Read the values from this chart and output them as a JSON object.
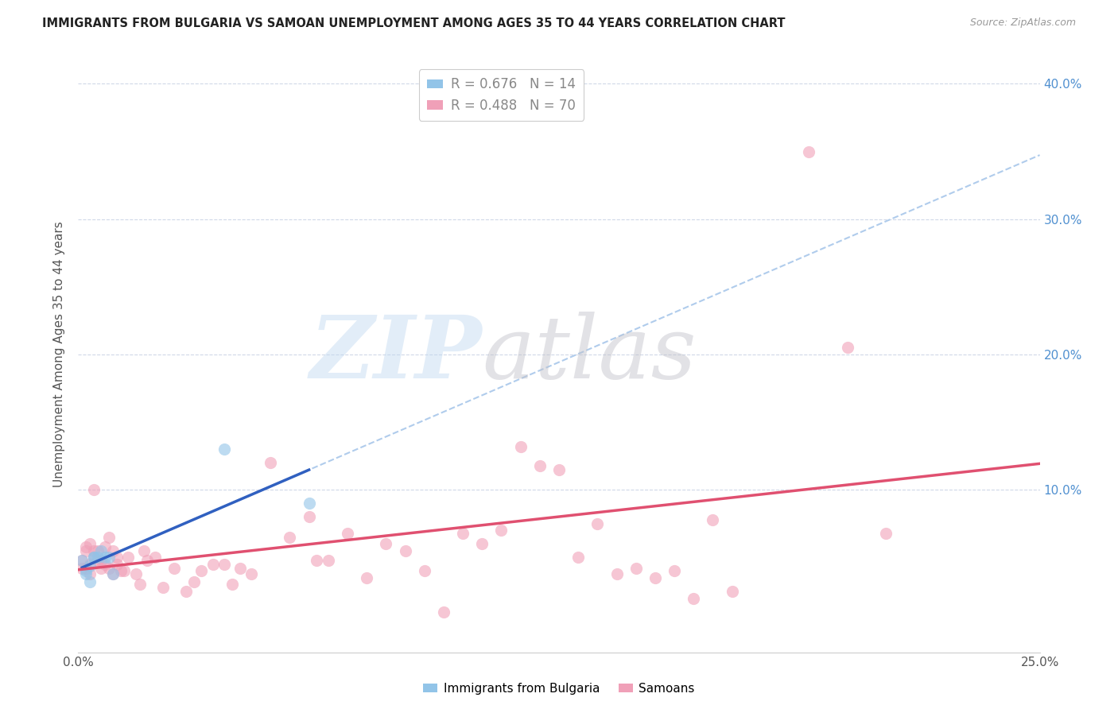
{
  "title": "IMMIGRANTS FROM BULGARIA VS SAMOAN UNEMPLOYMENT AMONG AGES 35 TO 44 YEARS CORRELATION CHART",
  "source": "Source: ZipAtlas.com",
  "ylabel": "Unemployment Among Ages 35 to 44 years",
  "xlim": [
    0.0,
    0.25
  ],
  "ylim": [
    -0.02,
    0.42
  ],
  "y_ticks": [
    0.0,
    0.1,
    0.2,
    0.3,
    0.4
  ],
  "right_y_tick_labels": [
    "",
    "10.0%",
    "20.0%",
    "30.0%",
    "40.0%"
  ],
  "x_tick_left_label": "0.0%",
  "x_tick_right_label": "25.0%",
  "bulgaria_color": "#92c4e8",
  "samoan_color": "#f0a0b8",
  "bulgaria_line_color": "#3060c0",
  "samoan_line_color": "#e05070",
  "bulgaria_dash_color": "#b0ccec",
  "grid_color": "#d0d8e8",
  "legend_entries": [
    {
      "label": "R = 0.676   N = 14",
      "color": "#92c4e8"
    },
    {
      "label": "R = 0.488   N = 70",
      "color": "#f0a0b8"
    }
  ],
  "bottom_legend": [
    {
      "label": "Immigrants from Bulgaria",
      "color": "#92c4e8"
    },
    {
      "label": "Samoans",
      "color": "#f0a0b8"
    }
  ],
  "bulgaria_points_x": [
    0.001,
    0.002,
    0.002,
    0.003,
    0.003,
    0.004,
    0.004,
    0.005,
    0.006,
    0.007,
    0.008,
    0.009,
    0.038,
    0.06
  ],
  "bulgaria_points_y": [
    0.048,
    0.04,
    0.038,
    0.044,
    0.032,
    0.05,
    0.05,
    0.05,
    0.055,
    0.05,
    0.05,
    0.038,
    0.13,
    0.09
  ],
  "samoan_points_x": [
    0.001,
    0.001,
    0.002,
    0.002,
    0.002,
    0.003,
    0.003,
    0.003,
    0.004,
    0.004,
    0.004,
    0.005,
    0.005,
    0.006,
    0.006,
    0.007,
    0.007,
    0.008,
    0.008,
    0.009,
    0.009,
    0.01,
    0.01,
    0.011,
    0.012,
    0.013,
    0.015,
    0.016,
    0.017,
    0.018,
    0.02,
    0.022,
    0.025,
    0.028,
    0.03,
    0.032,
    0.035,
    0.038,
    0.04,
    0.042,
    0.045,
    0.05,
    0.055,
    0.06,
    0.062,
    0.065,
    0.07,
    0.075,
    0.08,
    0.085,
    0.09,
    0.095,
    0.1,
    0.105,
    0.11,
    0.115,
    0.12,
    0.125,
    0.13,
    0.135,
    0.14,
    0.145,
    0.15,
    0.155,
    0.16,
    0.165,
    0.17,
    0.19,
    0.2,
    0.21
  ],
  "samoan_points_y": [
    0.048,
    0.042,
    0.055,
    0.058,
    0.042,
    0.06,
    0.045,
    0.038,
    0.055,
    0.1,
    0.05,
    0.055,
    0.048,
    0.042,
    0.048,
    0.045,
    0.058,
    0.042,
    0.065,
    0.038,
    0.055,
    0.05,
    0.045,
    0.04,
    0.04,
    0.05,
    0.038,
    0.03,
    0.055,
    0.048,
    0.05,
    0.028,
    0.042,
    0.025,
    0.032,
    0.04,
    0.045,
    0.045,
    0.03,
    0.042,
    0.038,
    0.12,
    0.065,
    0.08,
    0.048,
    0.048,
    0.068,
    0.035,
    0.06,
    0.055,
    0.04,
    0.01,
    0.068,
    0.06,
    0.07,
    0.132,
    0.118,
    0.115,
    0.05,
    0.075,
    0.038,
    0.042,
    0.035,
    0.04,
    0.02,
    0.078,
    0.025,
    0.35,
    0.205,
    0.068
  ]
}
